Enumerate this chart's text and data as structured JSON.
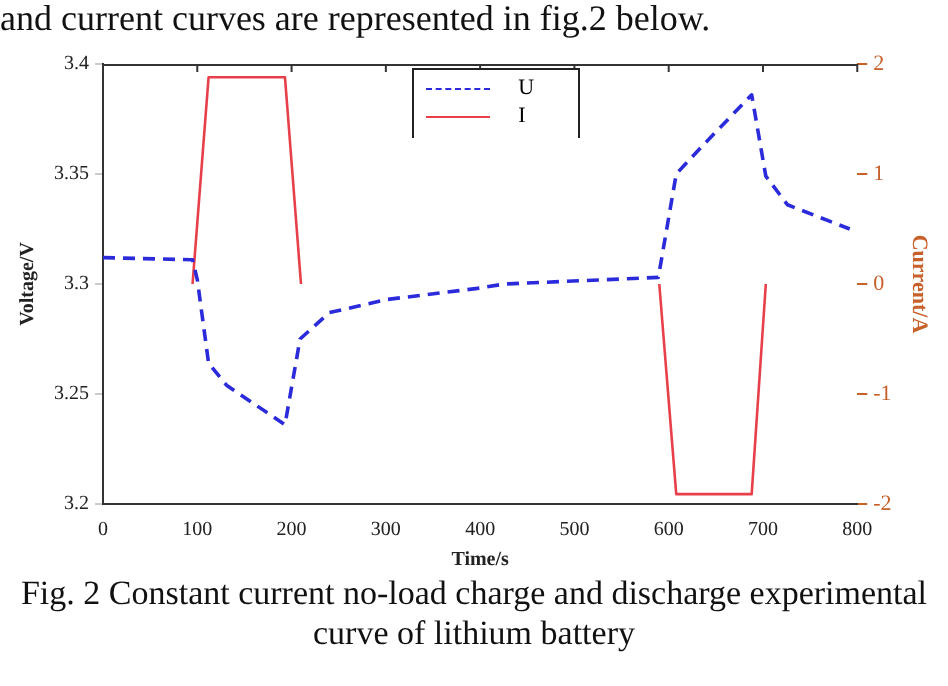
{
  "chart_data": {
    "type": "line",
    "xlabel": "Time/s",
    "ylabel": "Voltage/V",
    "y2label": "Current/A",
    "annotations": [
      "and current curves are represented in fig.2 below.",
      "Fig. 2 Constant current no-load charge and discharge experimental curve of lithium battery"
    ],
    "xlim": [
      0,
      800
    ],
    "xticks": [
      0,
      100,
      200,
      300,
      400,
      500,
      600,
      700,
      800
    ],
    "ylim": [
      3.2,
      3.4
    ],
    "yticks": [
      3.2,
      3.25,
      3.3,
      3.35,
      3.4
    ],
    "y2lim": [
      -2,
      2
    ],
    "y2ticks": [
      -2,
      -1,
      0,
      1,
      2
    ],
    "legend": "top",
    "grid": false,
    "marker": "none",
    "series": [
      {
        "name": "U",
        "color": "#2b2bdb",
        "line_style": "dashed",
        "x": [
          0,
          95,
          100,
          112,
          131,
          193,
          209,
          240,
          302,
          397,
          426,
          589,
          608,
          634,
          688,
          703,
          726,
          792
        ],
        "values": [
          3.312,
          3.311,
          3.302,
          3.264,
          3.254,
          3.236,
          3.275,
          3.287,
          3.293,
          3.298,
          3.3,
          3.303,
          3.35,
          3.362,
          3.386,
          3.349,
          3.336,
          3.325
        ]
      },
      {
        "name": "I",
        "color": "#e8404a",
        "axis": "y2",
        "line_style": "solid",
        "x": [
          95,
          112,
          193,
          210,
          400,
          590,
          608,
          688,
          703
        ],
        "values": [
          0,
          1.88,
          1.88,
          0,
          null,
          0,
          -1.91,
          -1.91,
          0
        ]
      }
    ]
  }
}
